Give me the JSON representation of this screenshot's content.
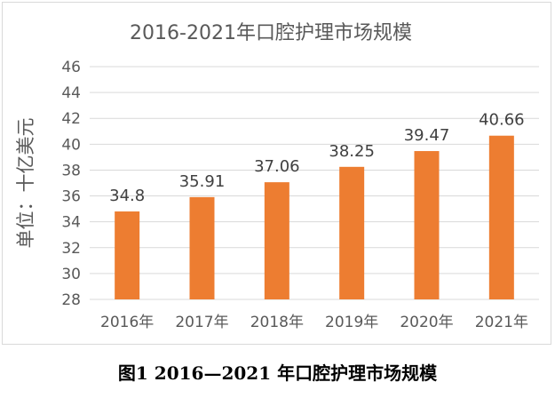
{
  "chart_data": {
    "type": "bar",
    "title": "2016-2021年口腔护理市场规模",
    "ylabel": "单位：十亿美元",
    "xlabel": "",
    "categories": [
      "2016年",
      "2017年",
      "2018年",
      "2019年",
      "2020年",
      "2021年"
    ],
    "values": [
      34.8,
      35.91,
      37.06,
      38.25,
      39.47,
      40.66
    ],
    "value_labels": [
      "34.8",
      "35.91",
      "37.06",
      "38.25",
      "39.47",
      "40.66"
    ],
    "ylim": [
      28,
      46
    ],
    "yticks": [
      28,
      30,
      32,
      34,
      36,
      38,
      40,
      42,
      44,
      46
    ],
    "grid": true,
    "bar_color": "#ED7D31"
  },
  "caption": "图1 2016—2021 年口腔护理市场规模"
}
